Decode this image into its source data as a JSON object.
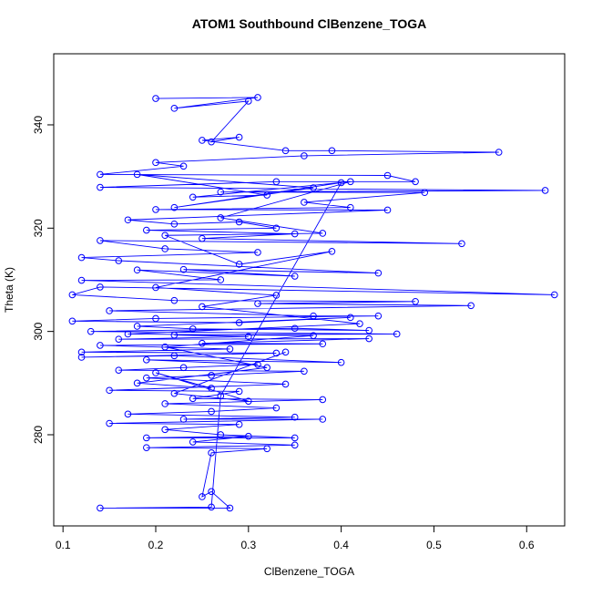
{
  "chart_data": {
    "type": "line",
    "title": "ATOM1 Southbound ClBenzene_TOGA",
    "x_label": "ClBenzene_TOGA",
    "y_label": "Theta (K)",
    "series": [
      {
        "color": "#0000ff",
        "x": [
          0.2,
          0.31,
          0.22,
          0.3,
          0.26,
          0.29,
          0.25,
          0.34,
          0.39,
          0.57,
          0.36,
          0.2,
          0.23,
          0.14,
          0.45,
          0.48,
          0.33,
          0.14,
          0.62,
          0.27,
          0.49,
          0.36,
          0.41,
          0.2,
          0.45,
          0.17,
          0.22,
          0.29,
          0.33,
          0.19,
          0.35,
          0.25,
          0.53,
          0.14,
          0.21,
          0.31,
          0.12,
          0.16,
          0.44,
          0.23,
          0.35,
          0.18,
          0.27,
          0.12,
          0.63,
          0.14,
          0.11,
          0.22,
          0.48,
          0.31,
          0.54,
          0.15,
          0.37,
          0.44,
          0.2,
          0.11,
          0.29,
          0.41,
          0.18,
          0.24,
          0.43,
          0.35,
          0.13,
          0.46,
          0.22,
          0.3,
          0.16,
          0.43,
          0.25,
          0.38,
          0.14,
          0.28,
          0.12,
          0.33,
          0.12,
          0.22,
          0.4,
          0.19,
          0.31,
          0.23,
          0.16,
          0.36,
          0.26,
          0.19,
          0.34,
          0.15,
          0.29,
          0.24,
          0.38,
          0.21,
          0.33,
          0.26,
          0.17,
          0.35,
          0.23,
          0.38,
          0.15,
          0.29,
          0.21,
          0.27,
          0.35,
          0.19,
          0.3,
          0.24,
          0.35,
          0.19,
          0.32,
          0.26,
          0.25,
          0.26,
          0.28,
          0.14,
          0.26,
          0.27,
          0.4,
          0.22,
          0.37,
          0.18,
          0.32,
          0.24,
          0.41,
          0.27,
          0.38,
          0.21,
          0.29,
          0.39,
          0.2,
          0.33,
          0.25,
          0.42,
          0.17,
          0.37,
          0.21,
          0.32,
          0.18,
          0.26,
          0.2,
          0.3,
          0.22,
          0.34
        ],
        "values": [
          345.1,
          345.3,
          343.2,
          344.6,
          336.7,
          337.6,
          337.0,
          335.0,
          335.0,
          334.7,
          334.0,
          332.7,
          332.0,
          330.4,
          330.2,
          329.0,
          329.0,
          327.9,
          327.3,
          327.0,
          326.9,
          325.0,
          324.0,
          323.6,
          323.5,
          321.6,
          320.8,
          321.2,
          320.0,
          319.6,
          318.9,
          318.0,
          317.0,
          317.6,
          316.0,
          315.3,
          314.3,
          313.7,
          311.3,
          312.0,
          310.7,
          311.9,
          310.0,
          309.9,
          307.1,
          308.6,
          307.1,
          306.0,
          305.8,
          305.4,
          305.0,
          304.0,
          303.0,
          303.0,
          302.5,
          302.0,
          301.7,
          302.7,
          301.0,
          300.5,
          300.2,
          300.6,
          300.0,
          299.5,
          299.3,
          299.0,
          298.5,
          298.6,
          297.7,
          297.6,
          297.3,
          296.6,
          296.0,
          295.8,
          295.0,
          295.3,
          294.0,
          294.5,
          293.6,
          293.0,
          292.5,
          292.3,
          291.5,
          291.0,
          289.8,
          288.6,
          288.4,
          287.0,
          286.8,
          286.0,
          285.2,
          284.5,
          284.0,
          283.4,
          283.0,
          283.0,
          282.2,
          282.0,
          281.0,
          280.0,
          279.4,
          279.4,
          279.7,
          278.6,
          278.0,
          277.5,
          277.3,
          276.5,
          268.0,
          269.0,
          265.8,
          265.8,
          266.0,
          287.5,
          328.8,
          324.0,
          327.8,
          330.4,
          326.4,
          326.0,
          329.0,
          322.0,
          319.0,
          318.6,
          313.0,
          315.5,
          308.5,
          307.0,
          304.8,
          301.5,
          299.5,
          299.2,
          297.0,
          293.0,
          290.0,
          289.0,
          292.0,
          286.5,
          288.0,
          296.0
        ]
      }
    ],
    "xlim": [
      0.09,
      0.641
    ],
    "ylim": [
      262.35,
      353.76
    ],
    "xticks": [
      0.1,
      0.2,
      0.3,
      0.4,
      0.5,
      0.6
    ],
    "yticks": [
      280,
      300,
      320,
      340
    ]
  }
}
